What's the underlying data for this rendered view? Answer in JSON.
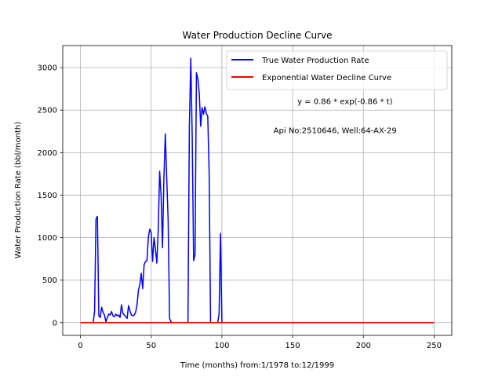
{
  "chart_data": {
    "type": "line",
    "title": "Water Production Decline Curve",
    "xlabel": "Time (months) from:1/1978 to:12/1999",
    "ylabel": "Water Production Rate (bbl/month)",
    "xlim": [
      -12.5,
      262.5
    ],
    "ylim": [
      -150,
      3260
    ],
    "xticks": [
      0,
      50,
      100,
      150,
      200,
      250
    ],
    "yticks": [
      0,
      500,
      1000,
      1500,
      2000,
      2500,
      3000
    ],
    "grid": true,
    "legend_position": "top-right",
    "annotations": [
      {
        "text": "y = 0.86 * exp(-0.86 * t)",
        "x": 187,
        "y": 2570
      },
      {
        "text": "Api No:2510646, Well:64-AX-29",
        "x": 180,
        "y": 2230
      }
    ],
    "series": [
      {
        "name": "True Water Production Rate",
        "color": "#0000ff",
        "x": [
          0,
          9,
          10,
          11,
          12,
          13,
          14,
          15,
          16,
          17,
          18,
          19,
          20,
          21,
          22,
          23,
          24,
          25,
          26,
          27,
          28,
          29,
          30,
          31,
          32,
          33,
          34,
          35,
          36,
          37,
          38,
          39,
          40,
          41,
          42,
          43,
          44,
          45,
          46,
          47,
          48,
          49,
          50,
          51,
          52,
          53,
          54,
          55,
          56,
          57,
          58,
          59,
          60,
          61,
          62,
          63,
          64,
          65,
          66,
          67,
          68,
          69,
          70,
          71,
          72,
          73,
          74,
          75,
          76,
          77,
          78,
          79,
          80,
          81,
          82,
          83,
          84,
          85,
          86,
          87,
          88,
          89,
          90,
          91,
          92,
          93,
          94,
          95,
          96,
          97,
          98,
          99,
          100
        ],
        "y": [
          0,
          0,
          130,
          1220,
          1250,
          80,
          60,
          180,
          120,
          90,
          10,
          60,
          100,
          90,
          130,
          80,
          70,
          100,
          80,
          90,
          60,
          210,
          110,
          90,
          70,
          50,
          200,
          140,
          90,
          80,
          90,
          120,
          210,
          380,
          450,
          580,
          400,
          680,
          720,
          730,
          1000,
          1100,
          1060,
          720,
          1000,
          870,
          700,
          1100,
          1780,
          1500,
          880,
          1700,
          2220,
          1700,
          1200,
          50,
          10,
          0,
          0,
          0,
          0,
          0,
          0,
          0,
          0,
          0,
          0,
          0,
          0,
          2300,
          3110,
          2200,
          730,
          800,
          2940,
          2870,
          2700,
          2310,
          2530,
          2450,
          2540,
          2460,
          2430,
          1750,
          0,
          0,
          0,
          0,
          0,
          0,
          100,
          1050,
          0
        ]
      },
      {
        "name": "Exponential Water Decline Curve",
        "color": "#ff0000",
        "x": [
          0,
          250
        ],
        "y": [
          0,
          0
        ]
      }
    ]
  }
}
